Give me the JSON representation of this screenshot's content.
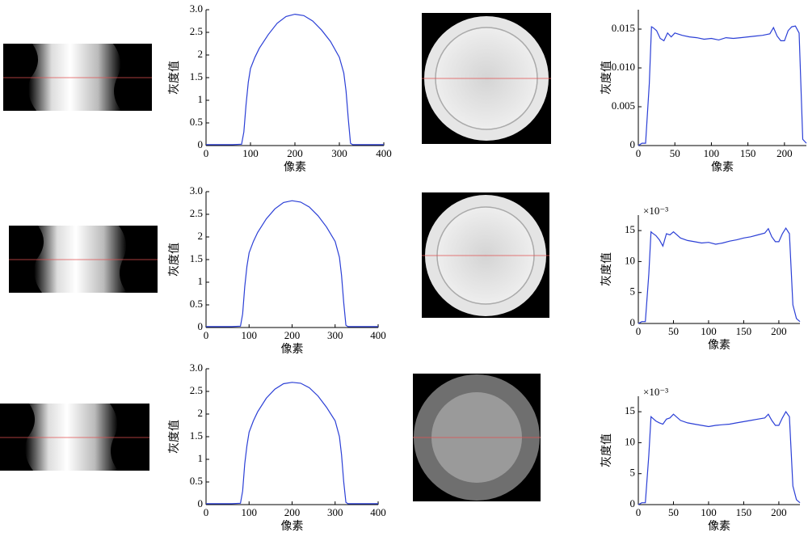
{
  "chart_data": [
    {
      "type": "line",
      "xlabel": "像素",
      "ylabel": "灰度值",
      "x": [
        0,
        20,
        40,
        60,
        80,
        85,
        90,
        95,
        100,
        110,
        120,
        140,
        160,
        180,
        200,
        220,
        240,
        260,
        280,
        300,
        310,
        315,
        320,
        325,
        330,
        340,
        360,
        380,
        400
      ],
      "series": [
        {
          "color": "#2b3fd6",
          "values": [
            0.02,
            0.02,
            0.02,
            0.02,
            0.03,
            0.3,
            0.9,
            1.4,
            1.7,
            1.95,
            2.15,
            2.45,
            2.7,
            2.85,
            2.9,
            2.87,
            2.75,
            2.55,
            2.3,
            1.95,
            1.6,
            1.2,
            0.6,
            0.05,
            0.02,
            0.02,
            0.02,
            0.02,
            0.02
          ]
        }
      ],
      "xlim": [
        0,
        400
      ],
      "xticks": [
        0,
        100,
        200,
        300,
        400
      ],
      "ylim": [
        0,
        3
      ],
      "yticks": [
        0,
        0.5,
        1,
        1.5,
        2,
        2.5,
        {
          "value": 3,
          "label": "3.0"
        }
      ]
    },
    {
      "type": "line",
      "xlabel": "像素",
      "ylabel": "灰度值",
      "x": [
        0,
        5,
        10,
        15,
        18,
        20,
        25,
        30,
        35,
        40,
        45,
        50,
        60,
        70,
        80,
        90,
        100,
        110,
        120,
        130,
        140,
        150,
        160,
        170,
        180,
        185,
        190,
        195,
        200,
        205,
        210,
        215,
        220,
        225,
        230
      ],
      "series": [
        {
          "color": "#2b3fd6",
          "values": [
            0,
            0.0003,
            0.0003,
            0.008,
            0.0153,
            0.0152,
            0.0148,
            0.0138,
            0.0135,
            0.0145,
            0.014,
            0.0145,
            0.0142,
            0.014,
            0.0139,
            0.0137,
            0.0138,
            0.0136,
            0.0139,
            0.0138,
            0.0139,
            0.014,
            0.0141,
            0.0142,
            0.0144,
            0.0152,
            0.0141,
            0.0135,
            0.0135,
            0.0148,
            0.0153,
            0.0154,
            0.0145,
            0.0008,
            0.0003
          ]
        }
      ],
      "xlim": [
        0,
        230
      ],
      "xticks": [
        0,
        50,
        100,
        150,
        200
      ],
      "ylim": [
        0,
        0.0175
      ],
      "yticks": [
        0,
        0.005,
        {
          "value": 0.01,
          "label": "0.010"
        },
        0.015
      ]
    },
    {
      "type": "line",
      "xlabel": "像素",
      "ylabel": "灰度值",
      "x": [
        0,
        20,
        40,
        60,
        80,
        85,
        90,
        95,
        100,
        110,
        120,
        140,
        160,
        180,
        200,
        220,
        240,
        260,
        280,
        300,
        310,
        315,
        320,
        325,
        330,
        340,
        360,
        380,
        400
      ],
      "series": [
        {
          "color": "#2b3fd6",
          "values": [
            0.02,
            0.02,
            0.02,
            0.02,
            0.03,
            0.3,
            0.9,
            1.35,
            1.65,
            1.9,
            2.1,
            2.4,
            2.62,
            2.76,
            2.8,
            2.77,
            2.66,
            2.47,
            2.22,
            1.9,
            1.55,
            1.15,
            0.55,
            0.05,
            0.02,
            0.02,
            0.02,
            0.02,
            0.02
          ]
        }
      ],
      "xlim": [
        0,
        400
      ],
      "xticks": [
        0,
        100,
        200,
        300,
        400
      ],
      "ylim": [
        0,
        3
      ],
      "yticks": [
        0,
        0.5,
        1,
        1.5,
        2,
        2.5,
        {
          "value": 3,
          "label": "3.0"
        }
      ]
    },
    {
      "type": "line",
      "xlabel": "像素",
      "ylabel": "灰度值",
      "annotation": "×10⁻³",
      "x": [
        0,
        5,
        10,
        15,
        18,
        20,
        25,
        30,
        35,
        40,
        45,
        50,
        60,
        70,
        80,
        90,
        100,
        110,
        120,
        130,
        140,
        150,
        160,
        170,
        180,
        185,
        190,
        195,
        200,
        205,
        210,
        215,
        220,
        225,
        230
      ],
      "series": [
        {
          "color": "#2b3fd6",
          "values": [
            0,
            0.3,
            0.3,
            8,
            14.8,
            14.6,
            14.2,
            13.5,
            12.5,
            14.5,
            14.3,
            14.8,
            13.8,
            13.4,
            13.2,
            13,
            13.1,
            12.8,
            13,
            13.3,
            13.5,
            13.8,
            14,
            14.3,
            14.6,
            15.3,
            14,
            13.2,
            13.2,
            14.5,
            15.4,
            14.5,
            3,
            0.8,
            0.3
          ]
        }
      ],
      "xlim": [
        0,
        230
      ],
      "xticks": [
        0,
        50,
        100,
        150,
        200
      ],
      "ylim": [
        0,
        17.5
      ],
      "yticks": [
        0,
        5,
        10,
        15
      ]
    },
    {
      "type": "line",
      "xlabel": "像素",
      "ylabel": "灰度值",
      "x": [
        0,
        20,
        40,
        60,
        80,
        85,
        90,
        95,
        100,
        110,
        120,
        140,
        160,
        180,
        200,
        220,
        240,
        260,
        280,
        300,
        310,
        315,
        320,
        325,
        330,
        340,
        360,
        380,
        400
      ],
      "series": [
        {
          "color": "#2b3fd6",
          "values": [
            0.02,
            0.02,
            0.02,
            0.02,
            0.03,
            0.3,
            0.9,
            1.3,
            1.6,
            1.85,
            2.05,
            2.35,
            2.55,
            2.67,
            2.7,
            2.68,
            2.58,
            2.4,
            2.15,
            1.85,
            1.5,
            1.1,
            0.5,
            0.05,
            0.02,
            0.02,
            0.02,
            0.02,
            0.02
          ]
        }
      ],
      "xlim": [
        0,
        400
      ],
      "xticks": [
        0,
        100,
        200,
        300,
        400
      ],
      "ylim": [
        0,
        3
      ],
      "yticks": [
        0,
        0.5,
        1,
        1.5,
        2,
        2.5,
        {
          "value": 3,
          "label": "3.0"
        }
      ]
    },
    {
      "type": "line",
      "xlabel": "像素",
      "ylabel": "灰度值",
      "annotation": "×10⁻³",
      "x": [
        0,
        5,
        10,
        15,
        18,
        20,
        25,
        30,
        35,
        40,
        45,
        50,
        60,
        70,
        80,
        90,
        100,
        110,
        120,
        130,
        140,
        150,
        160,
        170,
        180,
        185,
        190,
        195,
        200,
        205,
        210,
        215,
        220,
        225,
        230
      ],
      "series": [
        {
          "color": "#2b3fd6",
          "values": [
            0,
            0.3,
            0.3,
            8,
            14.2,
            14,
            13.5,
            13.2,
            13,
            13.8,
            14,
            14.6,
            13.6,
            13.2,
            13,
            12.8,
            12.6,
            12.8,
            12.9,
            13,
            13.2,
            13.4,
            13.6,
            13.8,
            14,
            14.6,
            13.6,
            12.8,
            12.8,
            14,
            15,
            14.2,
            3,
            0.8,
            0.3
          ]
        }
      ],
      "xlim": [
        0,
        230
      ],
      "xticks": [
        0,
        50,
        100,
        150,
        200
      ],
      "ylim": [
        0,
        17.5
      ],
      "yticks": [
        0,
        5,
        10,
        15
      ]
    }
  ]
}
